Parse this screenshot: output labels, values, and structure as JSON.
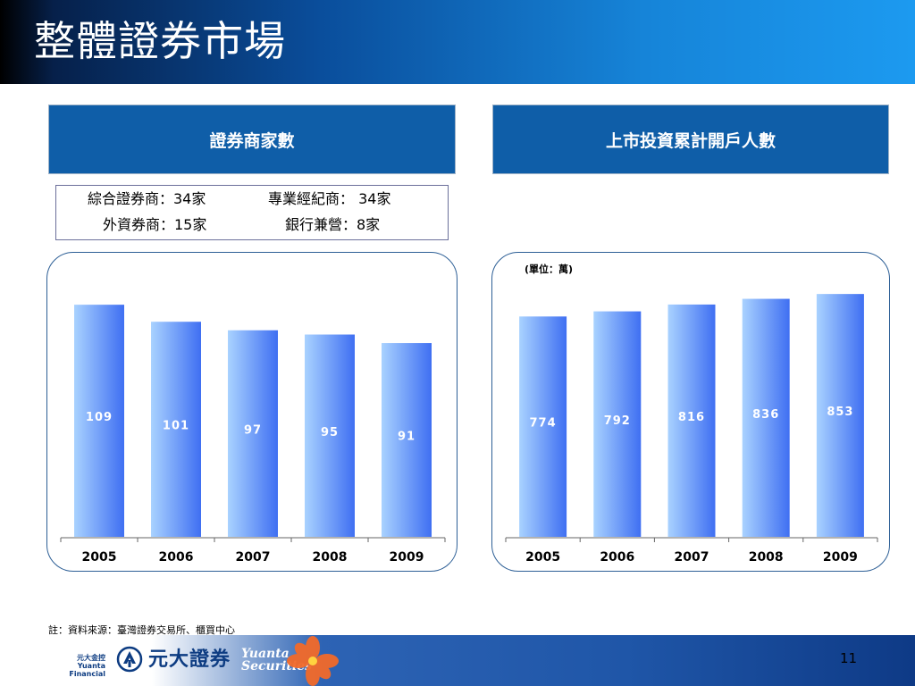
{
  "page_title": "整體證券市場",
  "left_panel": {
    "header": "證券商家數",
    "info": {
      "row1_col1": "綜合證券商：34家",
      "row1_col2": "專業經紀商： 34家",
      "row2_col1": "外資券商：15家",
      "row2_col2": "銀行兼營：8家"
    }
  },
  "right_panel": {
    "header": "上市投資累計開戶人數",
    "unit_label": "(單位：萬)"
  },
  "footnote": "註：資料來源：臺灣證券交易所、櫃買中心",
  "footer": {
    "brand_small_line1": "元大金控",
    "brand_small_line2": "Yuanta Financial",
    "brand_cn": "元大證券",
    "brand_en_line1": "Yuanta",
    "brand_en_line2": "Securities",
    "page_number": "11"
  },
  "colors": {
    "bar_light": "#a9d2ff",
    "bar_dark": "#3f6ff2",
    "header_blue": "#0f5ea8",
    "frame_border": "#2d5f96"
  },
  "chart_data": [
    {
      "type": "bar",
      "categories": [
        "2005",
        "2006",
        "2007",
        "2008",
        "2009"
      ],
      "values": [
        109,
        101,
        97,
        95,
        91
      ],
      "title": "證券商家數",
      "xlabel": "",
      "ylabel": "",
      "ylim": [
        0,
        125
      ]
    },
    {
      "type": "bar",
      "categories": [
        "2005",
        "2006",
        "2007",
        "2008",
        "2009"
      ],
      "values": [
        774,
        792,
        816,
        836,
        853
      ],
      "title": "上市投資累計開戶人數",
      "unit": "萬",
      "xlabel": "",
      "ylabel": "",
      "ylim": [
        0,
        935
      ]
    }
  ]
}
